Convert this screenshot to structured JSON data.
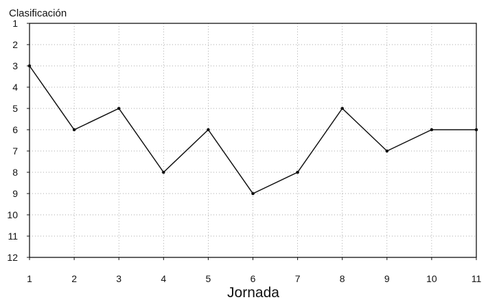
{
  "chart_data": {
    "type": "line",
    "ylabel": "Clasificación",
    "xlabel": "Jornada",
    "x": [
      1,
      2,
      3,
      4,
      5,
      6,
      7,
      8,
      9,
      10,
      11
    ],
    "series": [
      {
        "values": [
          3,
          6,
          5,
          8,
          6,
          9,
          8,
          5,
          7,
          6,
          6
        ]
      }
    ],
    "xlim": [
      1,
      11
    ],
    "ylim": [
      1,
      12
    ],
    "y_inverted": true,
    "x_ticks": [
      "1",
      "2",
      "3",
      "4",
      "5",
      "6",
      "7",
      "8",
      "9",
      "10",
      "11"
    ],
    "y_ticks": [
      "1",
      "2",
      "3",
      "4",
      "5",
      "6",
      "7",
      "8",
      "9",
      "10",
      "11",
      "12"
    ],
    "grid": "dotted",
    "legend": "none",
    "line_color": "#111111"
  }
}
